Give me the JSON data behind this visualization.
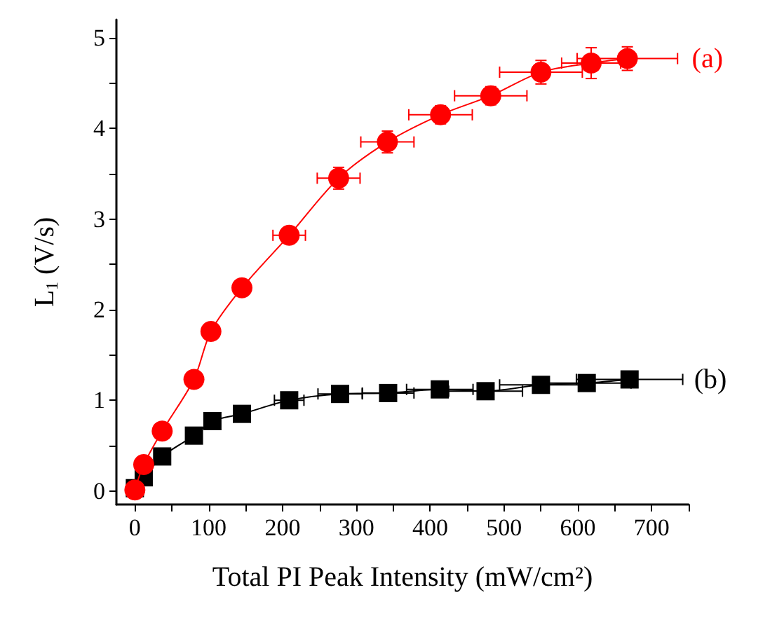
{
  "chart_data": {
    "type": "line",
    "xlabel": "Total PI Peak Intensity (mW/cm²)",
    "ylabel": "L$_{1}$ (V/s)",
    "xlim": [
      -25,
      750
    ],
    "xticks": [
      0,
      {
        "value": 50,
        "label": null
      },
      100,
      {
        "value": 150,
        "label": null
      },
      200,
      {
        "value": 250,
        "label": null
      },
      300,
      {
        "value": 350,
        "label": null
      },
      400,
      {
        "value": 450,
        "label": null
      },
      500,
      {
        "value": 550,
        "label": null
      },
      600,
      {
        "value": 650,
        "label": null
      },
      700,
      {
        "value": 750,
        "label": null
      }
    ],
    "ylim": [
      -0.15,
      5.2
    ],
    "yticks": [
      0,
      {
        "value": 0.5,
        "label": null
      },
      1,
      {
        "value": 1.5,
        "label": null
      },
      2,
      {
        "value": 2.5,
        "label": null
      },
      3,
      {
        "value": 3.5,
        "label": null
      },
      4,
      {
        "value": 4.5,
        "label": null
      },
      5
    ],
    "grid": false,
    "legend": false,
    "line_style": "solid",
    "series": [
      {
        "name": "(a)",
        "color": "#ff0000",
        "marker": "circle",
        "x": [
          0,
          12,
          37,
          80,
          103,
          145,
          209,
          276,
          342,
          414,
          482,
          550,
          618,
          667
        ],
        "values": [
          0.01,
          0.29,
          0.66,
          1.23,
          1.76,
          2.24,
          2.82,
          3.45,
          3.85,
          4.15,
          4.36,
          4.62,
          4.72,
          4.77
        ],
        "errors": [
          null,
          null,
          null,
          null,
          null,
          0.05,
          0.05,
          0.12,
          0.12,
          0.1,
          0.1,
          0.13,
          0.17,
          0.13
        ],
        "xerrors": [
          null,
          null,
          null,
          null,
          8,
          10,
          22,
          29,
          36,
          43,
          49,
          56,
          40,
          68
        ]
      },
      {
        "name": "(b)",
        "color": "#000000",
        "marker": "square",
        "x": [
          0,
          12,
          37,
          80,
          105,
          145,
          209,
          278,
          343,
          413,
          475,
          550,
          612,
          670
        ],
        "values": [
          0.03,
          0.15,
          0.38,
          0.61,
          0.77,
          0.85,
          1.0,
          1.07,
          1.08,
          1.12,
          1.1,
          1.17,
          1.19,
          1.23
        ],
        "errors": [
          null,
          null,
          null,
          null,
          null,
          null,
          0.03,
          0.03,
          0.03,
          0.03,
          0.03,
          0.03,
          0.03,
          0.03
        ],
        "xerrors": [
          null,
          null,
          null,
          null,
          null,
          10,
          20,
          30,
          35,
          45,
          50,
          56,
          60,
          72
        ]
      }
    ]
  }
}
